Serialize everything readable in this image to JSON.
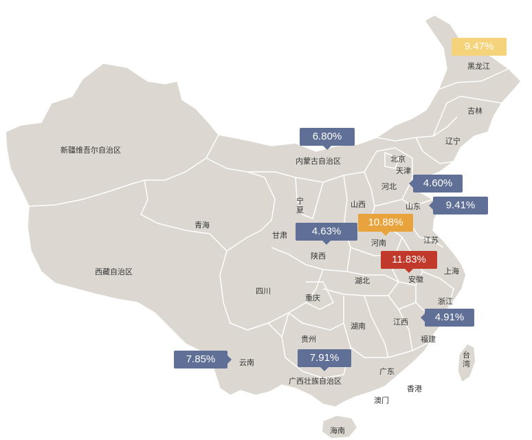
{
  "colors": {
    "land": "#dcd8d1",
    "border": "#ffffff",
    "badge_blue": "#5f6f96",
    "badge_orange": "#e8a33d",
    "badge_yellow": "#f5d37a",
    "badge_red": "#c0392b"
  },
  "provinces": {
    "xinjiang": "新疆维吾尔自治区",
    "xizang": "西藏自治区",
    "qinghai": "青海",
    "gansu": "甘肃",
    "ningxia": "宁夏",
    "neimenggu": "内蒙古自治区",
    "heilongjiang": "黑龙江",
    "jilin": "吉林",
    "liaoning": "辽宁",
    "beijing": "北京",
    "tianjin": "天津",
    "hebei": "河北",
    "shanxi": "山西",
    "shandong": "山东",
    "henan": "河南",
    "shaanxi": "陕西",
    "jiangsu": "江苏",
    "anhui": "安徽",
    "shanghai": "上海",
    "sichuan": "四川",
    "chongqing": "重庆",
    "hubei": "湖北",
    "zhejiang": "浙江",
    "hunan": "湖南",
    "jiangxi": "江西",
    "guizhou": "贵州",
    "fujian": "福建",
    "taiwan": "台湾",
    "yunnan": "云南",
    "guangxi": "广西壮族自治区",
    "guangdong": "广东",
    "xianggang": "香港",
    "aomen": "澳门",
    "hainan": "海南"
  },
  "badges": {
    "heilongjiang": "9.47%",
    "neimenggu": "6.80%",
    "hebei": "4.60%",
    "shandong": "9.41%",
    "henan": "10.88%",
    "shaanxi": "4.63%",
    "anhui": "11.83%",
    "zhejiang": "4.91%",
    "yunnan": "7.85%",
    "guangxi": "7.91%"
  }
}
